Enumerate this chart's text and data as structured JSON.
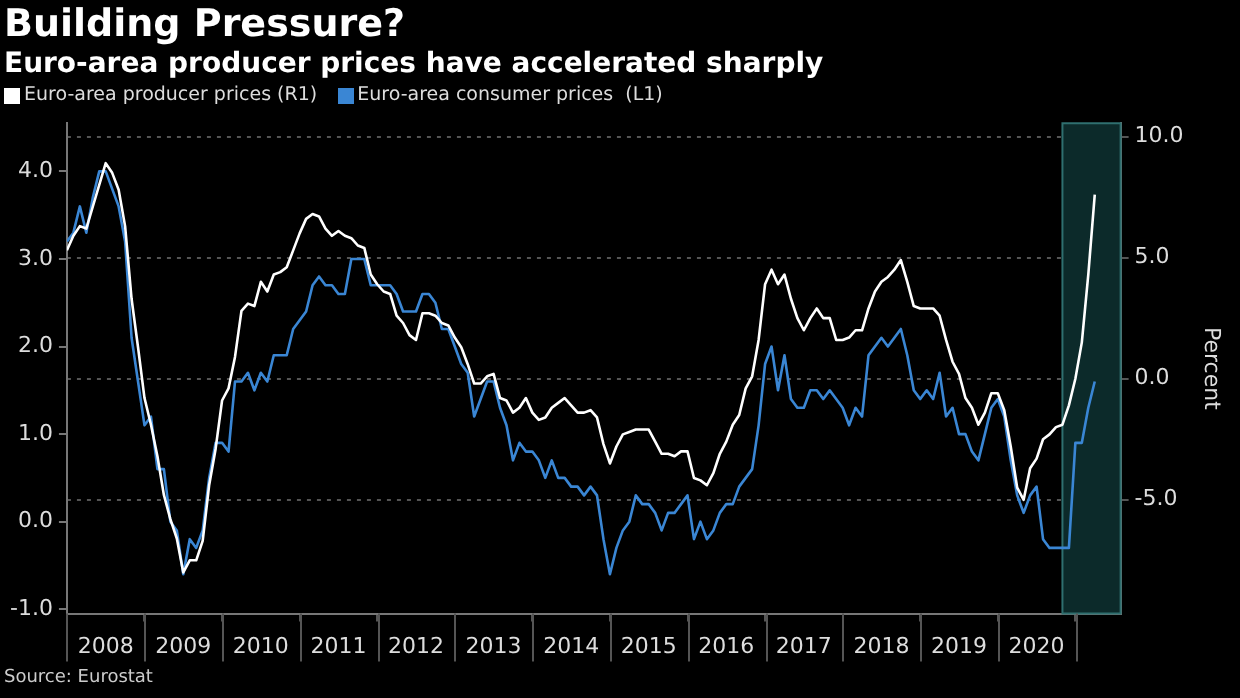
{
  "chart_data": {
    "type": "line",
    "title": "Building Pressure?",
    "subtitle": "Euro-area producer prices have accelerated sharply",
    "y2label": "Percent",
    "legend": "top left",
    "grid": "y",
    "marker": "none",
    "line_style": "solid",
    "x": [
      "2008-01",
      "2008-02",
      "2008-03",
      "2008-04",
      "2008-05",
      "2008-06",
      "2008-07",
      "2008-08",
      "2008-09",
      "2008-10",
      "2008-11",
      "2008-12",
      "2009-01",
      "2009-02",
      "2009-03",
      "2009-04",
      "2009-05",
      "2009-06",
      "2009-07",
      "2009-08",
      "2009-09",
      "2009-10",
      "2009-11",
      "2009-12",
      "2010-01",
      "2010-02",
      "2010-03",
      "2010-04",
      "2010-05",
      "2010-06",
      "2010-07",
      "2010-08",
      "2010-09",
      "2010-10",
      "2010-11",
      "2010-12",
      "2011-01",
      "2011-02",
      "2011-03",
      "2011-04",
      "2011-05",
      "2011-06",
      "2011-07",
      "2011-08",
      "2011-09",
      "2011-10",
      "2011-11",
      "2011-12",
      "2012-01",
      "2012-02",
      "2012-03",
      "2012-04",
      "2012-05",
      "2012-06",
      "2012-07",
      "2012-08",
      "2012-09",
      "2012-10",
      "2012-11",
      "2012-12",
      "2013-01",
      "2013-02",
      "2013-03",
      "2013-04",
      "2013-05",
      "2013-06",
      "2013-07",
      "2013-08",
      "2013-09",
      "2013-10",
      "2013-11",
      "2013-12",
      "2014-01",
      "2014-02",
      "2014-03",
      "2014-04",
      "2014-05",
      "2014-06",
      "2014-07",
      "2014-08",
      "2014-09",
      "2014-10",
      "2014-11",
      "2014-12",
      "2015-01",
      "2015-02",
      "2015-03",
      "2015-04",
      "2015-05",
      "2015-06",
      "2015-07",
      "2015-08",
      "2015-09",
      "2015-10",
      "2015-11",
      "2015-12",
      "2016-01",
      "2016-02",
      "2016-03",
      "2016-04",
      "2016-05",
      "2016-06",
      "2016-07",
      "2016-08",
      "2016-09",
      "2016-10",
      "2016-11",
      "2016-12",
      "2017-01",
      "2017-02",
      "2017-03",
      "2017-04",
      "2017-05",
      "2017-06",
      "2017-07",
      "2017-08",
      "2017-09",
      "2017-10",
      "2017-11",
      "2017-12",
      "2018-01",
      "2018-02",
      "2018-03",
      "2018-04",
      "2018-05",
      "2018-06",
      "2018-07",
      "2018-08",
      "2018-09",
      "2018-10",
      "2018-11",
      "2018-12",
      "2019-01",
      "2019-02",
      "2019-03",
      "2019-04",
      "2019-05",
      "2019-06",
      "2019-07",
      "2019-08",
      "2019-09",
      "2019-10",
      "2019-11",
      "2019-12",
      "2020-01",
      "2020-02",
      "2020-03",
      "2020-04",
      "2020-05",
      "2020-06",
      "2020-07",
      "2020-08",
      "2020-09",
      "2020-10",
      "2020-11",
      "2020-12",
      "2021-01",
      "2021-02",
      "2021-03",
      "2021-04"
    ],
    "series": [
      {
        "name": "Euro-area producer prices (R1)",
        "color": "#ffffff",
        "axis": "y2",
        "values": [
          5.3,
          5.9,
          6.3,
          6.2,
          7.1,
          8.0,
          8.9,
          8.5,
          7.8,
          6.3,
          3.3,
          1.3,
          -0.8,
          -1.9,
          -3.2,
          -4.8,
          -5.8,
          -6.6,
          -8.0,
          -7.5,
          -7.5,
          -6.7,
          -4.4,
          -2.9,
          -0.9,
          -0.4,
          0.9,
          2.8,
          3.1,
          3.0,
          4.0,
          3.6,
          4.3,
          4.4,
          4.6,
          5.3,
          6.0,
          6.6,
          6.8,
          6.7,
          6.2,
          5.9,
          6.1,
          5.9,
          5.8,
          5.5,
          5.4,
          4.3,
          3.9,
          3.6,
          3.5,
          2.6,
          2.3,
          1.8,
          1.6,
          2.7,
          2.7,
          2.6,
          2.3,
          2.2,
          1.7,
          1.3,
          0.6,
          -0.2,
          -0.2,
          0.1,
          0.2,
          -0.8,
          -0.9,
          -1.4,
          -1.2,
          -0.8,
          -1.4,
          -1.7,
          -1.6,
          -1.2,
          -1.0,
          -0.8,
          -1.1,
          -1.4,
          -1.4,
          -1.3,
          -1.6,
          -2.7,
          -3.5,
          -2.8,
          -2.3,
          -2.2,
          -2.1,
          -2.1,
          -2.1,
          -2.6,
          -3.1,
          -3.1,
          -3.2,
          -3.0,
          -3.0,
          -4.1,
          -4.2,
          -4.4,
          -3.9,
          -3.1,
          -2.6,
          -1.9,
          -1.5,
          -0.4,
          0.1,
          1.6,
          3.9,
          4.5,
          3.9,
          4.3,
          3.3,
          2.5,
          2.0,
          2.5,
          2.9,
          2.5,
          2.5,
          1.6,
          1.6,
          1.7,
          2.0,
          2.0,
          2.9,
          3.6,
          4.0,
          4.2,
          4.5,
          4.9,
          4.0,
          3.0,
          2.9,
          2.9,
          2.9,
          2.6,
          1.6,
          0.7,
          0.2,
          -0.8,
          -1.2,
          -1.9,
          -1.4,
          -0.6,
          -0.6,
          -1.3,
          -2.8,
          -4.5,
          -5.0,
          -3.7,
          -3.3,
          -2.5,
          -2.3,
          -2.0,
          -1.9,
          -1.1,
          0.0,
          1.5,
          4.3,
          7.6
        ]
      },
      {
        "name": "Euro-area consumer prices  (L1)",
        "color": "#3a86d4",
        "axis": "y",
        "values": [
          3.2,
          3.3,
          3.6,
          3.3,
          3.7,
          4.0,
          4.0,
          3.8,
          3.6,
          3.2,
          2.1,
          1.6,
          1.1,
          1.2,
          0.6,
          0.6,
          0.0,
          -0.1,
          -0.6,
          -0.2,
          -0.3,
          -0.1,
          0.5,
          0.9,
          0.9,
          0.8,
          1.6,
          1.6,
          1.7,
          1.5,
          1.7,
          1.6,
          1.9,
          1.9,
          1.9,
          2.2,
          2.3,
          2.4,
          2.7,
          2.8,
          2.7,
          2.7,
          2.6,
          2.6,
          3.0,
          3.0,
          3.0,
          2.7,
          2.7,
          2.7,
          2.7,
          2.6,
          2.4,
          2.4,
          2.4,
          2.6,
          2.6,
          2.5,
          2.2,
          2.2,
          2.0,
          1.8,
          1.7,
          1.2,
          1.4,
          1.6,
          1.6,
          1.3,
          1.1,
          0.7,
          0.9,
          0.8,
          0.8,
          0.7,
          0.5,
          0.7,
          0.5,
          0.5,
          0.4,
          0.4,
          0.3,
          0.4,
          0.3,
          -0.2,
          -0.6,
          -0.3,
          -0.1,
          0.0,
          0.3,
          0.2,
          0.2,
          0.1,
          -0.1,
          0.1,
          0.1,
          0.2,
          0.3,
          -0.2,
          0.0,
          -0.2,
          -0.1,
          0.1,
          0.2,
          0.2,
          0.4,
          0.5,
          0.6,
          1.1,
          1.8,
          2.0,
          1.5,
          1.9,
          1.4,
          1.3,
          1.3,
          1.5,
          1.5,
          1.4,
          1.5,
          1.4,
          1.3,
          1.1,
          1.3,
          1.2,
          1.9,
          2.0,
          2.1,
          2.0,
          2.1,
          2.2,
          1.9,
          1.5,
          1.4,
          1.5,
          1.4,
          1.7,
          1.2,
          1.3,
          1.0,
          1.0,
          0.8,
          0.7,
          1.0,
          1.3,
          1.4,
          1.2,
          0.7,
          0.3,
          0.1,
          0.3,
          0.4,
          -0.2,
          -0.3,
          -0.3,
          -0.3,
          -0.3,
          0.9,
          0.9,
          1.3,
          1.6
        ]
      }
    ],
    "xlim": [
      "2008-01",
      "2021-08"
    ],
    "xticks": [
      {
        "value": "2008",
        "label": null
      },
      {
        "value": "2008-07",
        "label": "2008"
      },
      {
        "value": "2009",
        "label": null
      },
      {
        "value": "2009-07",
        "label": "2009"
      },
      {
        "value": "2010",
        "label": null
      },
      {
        "value": "2010-07",
        "label": "2010"
      },
      {
        "value": "2011",
        "label": null
      },
      {
        "value": "2011-07",
        "label": "2011"
      },
      {
        "value": "2012",
        "label": null
      },
      {
        "value": "2012-07",
        "label": "2012"
      },
      {
        "value": "2013",
        "label": null
      },
      {
        "value": "2013-07",
        "label": "2013"
      },
      {
        "value": "2014",
        "label": null
      },
      {
        "value": "2014-07",
        "label": "2014"
      },
      {
        "value": "2015",
        "label": null
      },
      {
        "value": "2015-07",
        "label": "2015"
      },
      {
        "value": "2016",
        "label": null
      },
      {
        "value": "2016-07",
        "label": "2016"
      },
      {
        "value": "2017",
        "label": null
      },
      {
        "value": "2017-07",
        "label": "2017"
      },
      {
        "value": "2018",
        "label": null
      },
      {
        "value": "2018-07",
        "label": "2018"
      },
      {
        "value": "2019",
        "label": null
      },
      {
        "value": "2019-07",
        "label": "2019"
      },
      {
        "value": "2020",
        "label": null
      },
      {
        "value": "2020-07",
        "label": "2020"
      },
      {
        "value": "2021",
        "label": null
      }
    ],
    "ylim": [
      -1.05,
      4.55
    ],
    "yticks": [
      {
        "value": -1,
        "label": "-1.0"
      },
      {
        "value": 0,
        "label": "0.0"
      },
      {
        "value": 1,
        "label": "1.0"
      },
      {
        "value": 2,
        "label": "2.0"
      },
      {
        "value": 3,
        "label": "3.0"
      },
      {
        "value": 4,
        "label": "4.0"
      }
    ],
    "y2lim": [
      -9.7,
      10.55
    ],
    "y2ticks": [
      {
        "value": -5,
        "label": "-5.0"
      },
      {
        "value": 0,
        "label": "0.0"
      },
      {
        "value": 5,
        "label": "5.0"
      },
      {
        "value": 10,
        "label": "10.0"
      }
    ],
    "bands": [
      {
        "axis": "x",
        "from": "2020-11",
        "to": "2021-08",
        "color": "#0c2a2a"
      }
    ],
    "annotations": [
      "Source: Eurostat"
    ]
  }
}
